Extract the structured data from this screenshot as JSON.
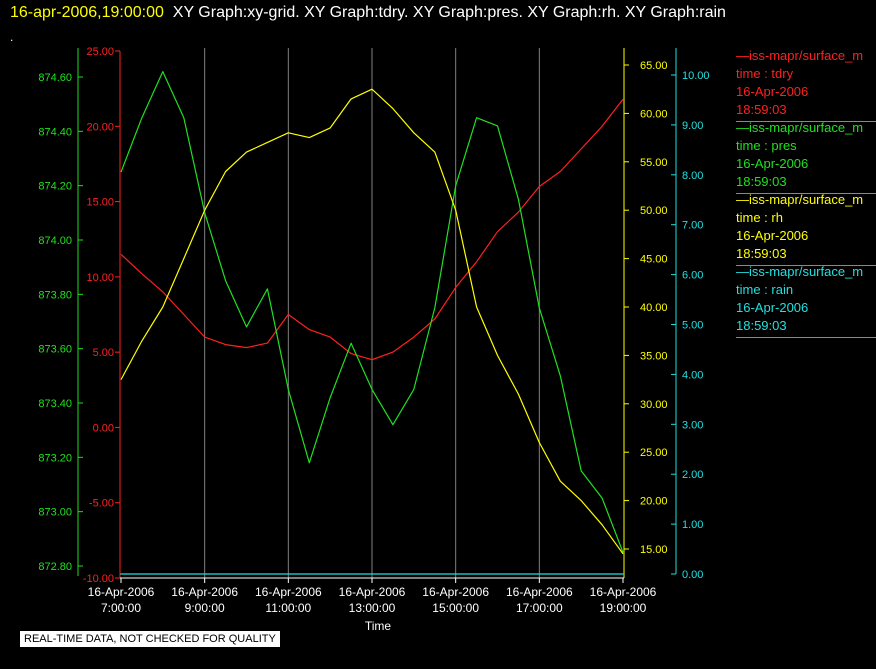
{
  "title": {
    "timestamp": "16-apr-2006,19:00:00",
    "graphs": "XY Graph:xy-grid.  XY Graph:tdry.  XY Graph:pres.  XY Graph:rh.  XY Graph:rain"
  },
  "dot_mark": ".",
  "footer_note": "REAL-TIME DATA, NOT CHECKED FOR QUALITY",
  "colors": {
    "background": "#000000",
    "tdry": "#ff2020",
    "pres": "#20e020",
    "rh": "#ffff00",
    "rain": "#20e0e0",
    "grid": "#808080"
  },
  "legend": [
    {
      "source": "—iss-mapr/surface_m",
      "field": "time : tdry",
      "date": "16-Apr-2006",
      "time": "18:59:03",
      "color": "#ff2020"
    },
    {
      "source": "—iss-mapr/surface_m",
      "field": "time : pres",
      "date": "16-Apr-2006",
      "time": "18:59:03",
      "color": "#20e020"
    },
    {
      "source": "—iss-mapr/surface_m",
      "field": "time : rh",
      "date": "16-Apr-2006",
      "time": "18:59:03",
      "color": "#ffff00"
    },
    {
      "source": "—iss-mapr/surface_m",
      "field": "time : rain",
      "date": "16-Apr-2006",
      "time": "18:59:03",
      "color": "#20e0e0"
    }
  ],
  "chart_data": {
    "type": "line",
    "xlabel": "Time",
    "xlim": [
      "2006-04-16 07:00",
      "2006-04-16 19:00"
    ],
    "x_ticks": [
      {
        "date": "16-Apr-2006",
        "time": "7:00:00"
      },
      {
        "date": "16-Apr-2006",
        "time": "9:00:00"
      },
      {
        "date": "16-Apr-2006",
        "time": "11:00:00"
      },
      {
        "date": "16-Apr-2006",
        "time": "13:00:00"
      },
      {
        "date": "16-Apr-2006",
        "time": "15:00:00"
      },
      {
        "date": "16-Apr-2006",
        "time": "17:00:00"
      },
      {
        "date": "16-Apr-2006",
        "time": "19:00:00"
      }
    ],
    "grid": "vertical",
    "axes": {
      "pres": {
        "side": "left-outer",
        "ylim": [
          872.75,
          874.75
        ],
        "ticks": [
          "872.80",
          "873.00",
          "873.20",
          "873.40",
          "873.60",
          "873.80",
          "874.00",
          "874.20",
          "874.40",
          "874.60"
        ]
      },
      "tdry": {
        "side": "left-inner",
        "ylim": [
          -10,
          25
        ],
        "ticks": [
          "-10.00",
          "-5.00",
          "0.00",
          "5.00",
          "10.00",
          "15.00",
          "20.00",
          "25.00"
        ]
      },
      "rh": {
        "side": "right-inner",
        "ylim": [
          12.5,
          66.5
        ],
        "ticks": [
          "15.00",
          "20.00",
          "25.00",
          "30.00",
          "35.00",
          "40.00",
          "45.00",
          "50.00",
          "55.00",
          "60.00",
          "65.00"
        ]
      },
      "rain": {
        "side": "right-outer",
        "ylim": [
          0,
          10.5
        ],
        "ticks": [
          "0.00",
          "1.00",
          "2.00",
          "3.00",
          "4.00",
          "5.00",
          "6.00",
          "7.00",
          "8.00",
          "9.00",
          "10.00"
        ]
      }
    },
    "series": [
      {
        "name": "tdry",
        "axis": "tdry",
        "x": [
          "07:00",
          "07:30",
          "08:00",
          "08:30",
          "09:00",
          "09:30",
          "10:00",
          "10:30",
          "11:00",
          "11:30",
          "12:00",
          "12:30",
          "13:00",
          "13:30",
          "14:00",
          "14:30",
          "15:00",
          "15:30",
          "16:00",
          "16:30",
          "17:00",
          "17:30",
          "18:00",
          "18:30",
          "19:00"
        ],
        "values": [
          11.5,
          10.2,
          9.0,
          7.5,
          6.0,
          5.5,
          5.3,
          5.6,
          7.5,
          6.5,
          6.0,
          4.9,
          4.5,
          5.0,
          6.0,
          7.2,
          9.3,
          11.0,
          13.0,
          14.3,
          16.0,
          17.0,
          18.5,
          20.0,
          21.8
        ]
      },
      {
        "name": "pres",
        "axis": "pres",
        "x": [
          "07:00",
          "07:30",
          "08:00",
          "08:30",
          "09:00",
          "09:30",
          "10:00",
          "10:30",
          "11:00",
          "11:30",
          "12:00",
          "12:30",
          "13:00",
          "13:30",
          "14:00",
          "14:30",
          "15:00",
          "15:30",
          "16:00",
          "16:30",
          "17:00",
          "17:30",
          "18:00",
          "18:30",
          "19:00"
        ],
        "values": [
          874.25,
          874.45,
          874.62,
          874.45,
          874.1,
          873.85,
          873.68,
          873.82,
          873.45,
          873.18,
          873.42,
          873.62,
          873.45,
          873.32,
          873.45,
          873.75,
          874.2,
          874.45,
          874.42,
          874.15,
          873.75,
          873.5,
          873.15,
          873.05,
          872.85
        ]
      },
      {
        "name": "rh",
        "axis": "rh",
        "x": [
          "07:00",
          "07:30",
          "08:00",
          "08:30",
          "09:00",
          "09:30",
          "10:00",
          "10:30",
          "11:00",
          "11:30",
          "12:00",
          "12:30",
          "13:00",
          "13:30",
          "14:00",
          "14:30",
          "15:00",
          "15:30",
          "16:00",
          "16:30",
          "17:00",
          "17:30",
          "18:00",
          "18:30",
          "19:00"
        ],
        "values": [
          32.5,
          36.5,
          40.0,
          45.0,
          50.0,
          54.0,
          56.0,
          57.0,
          58.0,
          57.5,
          58.5,
          61.5,
          62.5,
          60.5,
          58.0,
          56.0,
          50.0,
          40.0,
          35.0,
          31.0,
          26.0,
          22.0,
          20.0,
          17.5,
          14.5
        ]
      },
      {
        "name": "rain",
        "axis": "rain",
        "x": [
          "07:00",
          "19:00"
        ],
        "values": [
          0.0,
          0.0
        ]
      }
    ]
  }
}
